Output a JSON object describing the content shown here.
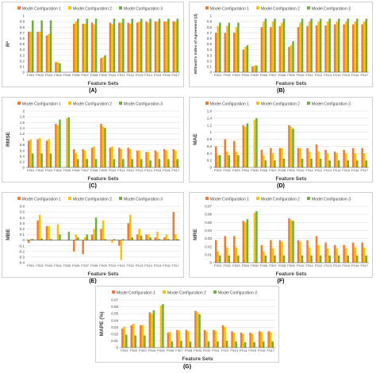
{
  "colors": {
    "series1": "#ED7D31",
    "series2": "#FFC000",
    "series3": "#70AD47",
    "grid": "#d9d9d9",
    "axis": "#595959"
  },
  "chart_data": [
    {
      "type": "bar",
      "panel_label": "(A)",
      "title": "",
      "xlabel": "Feature Sets",
      "ylabel": "R²",
      "ylim": [
        0,
        1
      ],
      "yticks": [
        "0",
        "0.1",
        "0.2",
        "0.3",
        "0.4",
        "0.5",
        "0.6",
        "0.7",
        "0.8",
        "0.9",
        "1"
      ],
      "grid": true,
      "legend": "top",
      "categories": [
        "FS01",
        "FS02",
        "FS03",
        "FS04",
        "FS05",
        "FS06",
        "FS07",
        "FS08",
        "FS09",
        "FS10",
        "FS11",
        "FS12",
        "FS13",
        "FS14",
        "FS15",
        "FS16",
        "FS17"
      ],
      "series": [
        {
          "name": "Model Configuration 1",
          "values": [
            0.72,
            0.72,
            0.65,
            0.18,
            0.0,
            0.86,
            0.86,
            0.88,
            0.25,
            0.88,
            0.88,
            0.88,
            0.88,
            0.9,
            0.9,
            0.9,
            0.9
          ]
        },
        {
          "name": "Model Configuration 2",
          "values": [
            0.72,
            0.72,
            0.68,
            0.18,
            0.0,
            0.9,
            0.86,
            0.85,
            0.27,
            0.85,
            0.88,
            0.86,
            0.9,
            0.88,
            0.9,
            0.9,
            0.9
          ]
        },
        {
          "name": "Model Configuration 3",
          "values": [
            0.92,
            0.92,
            0.92,
            0.16,
            0.0,
            0.95,
            0.95,
            0.95,
            0.3,
            0.95,
            0.95,
            0.95,
            0.95,
            0.95,
            0.95,
            0.95,
            0.95
          ]
        }
      ]
    },
    {
      "type": "bar",
      "panel_label": "(B)",
      "title": "",
      "xlabel": "Feature Sets",
      "ylabel": "Willmott's Index of Agreement (d)",
      "ylim": [
        0,
        1
      ],
      "yticks": [
        "0",
        "0.1",
        "0.2",
        "0.3",
        "0.4",
        "0.5",
        "0.6",
        "0.7",
        "0.8",
        "0.9",
        "1"
      ],
      "grid": true,
      "legend": "top",
      "categories": [
        "FS01",
        "FS02",
        "FS03",
        "FS04",
        "FS05",
        "FS06",
        "FS07",
        "FS08",
        "FS09",
        "FS10",
        "FS11",
        "FS12",
        "FS13",
        "FS14",
        "FS15",
        "FS16",
        "FS17"
      ],
      "series": [
        {
          "name": "Model Configuration 1",
          "values": [
            0.7,
            0.7,
            0.7,
            0.4,
            0.1,
            0.8,
            0.8,
            0.82,
            0.45,
            0.8,
            0.82,
            0.83,
            0.83,
            0.85,
            0.85,
            0.85,
            0.85
          ]
        },
        {
          "name": "Model Configuration 2",
          "values": [
            0.82,
            0.82,
            0.8,
            0.45,
            0.12,
            0.9,
            0.9,
            0.88,
            0.48,
            0.88,
            0.9,
            0.9,
            0.9,
            0.9,
            0.9,
            0.9,
            0.9
          ]
        },
        {
          "name": "Model Configuration 3",
          "values": [
            0.88,
            0.88,
            0.88,
            0.48,
            0.12,
            0.95,
            0.95,
            0.95,
            0.55,
            0.95,
            0.95,
            0.95,
            0.95,
            0.95,
            0.95,
            0.95,
            0.95
          ]
        }
      ]
    },
    {
      "type": "bar",
      "panel_label": "(C)",
      "title": "",
      "xlabel": "Feature Sets",
      "ylabel": "RMSE",
      "ylim": [
        0,
        2
      ],
      "yticks": [
        "0",
        "0.2",
        "0.4",
        "0.6",
        "0.8",
        "1",
        "1.2",
        "1.4",
        "1.6",
        "1.8",
        "2"
      ],
      "grid": true,
      "legend": "top",
      "categories": [
        "FS01",
        "FS02",
        "FS03",
        "FS04",
        "FS05",
        "FS06",
        "FS07",
        "FS08",
        "FS09",
        "FS10",
        "FS11",
        "FS12",
        "FS13",
        "FS14",
        "FS15",
        "FS16",
        "FS17"
      ],
      "series": [
        {
          "name": "Model Configuration 1",
          "values": [
            0.95,
            1.0,
            0.95,
            1.55,
            0.0,
            0.65,
            0.65,
            0.7,
            1.55,
            0.7,
            0.7,
            0.7,
            0.6,
            0.55,
            0.6,
            0.65,
            0.65
          ]
        },
        {
          "name": "Model Configuration 2",
          "values": [
            1.0,
            1.05,
            1.0,
            1.5,
            1.75,
            0.5,
            0.6,
            0.75,
            1.45,
            0.75,
            0.65,
            0.65,
            0.6,
            0.55,
            0.55,
            0.6,
            0.6
          ]
        },
        {
          "name": "Model Configuration 3",
          "values": [
            0.5,
            0.5,
            0.5,
            1.7,
            1.78,
            0.3,
            0.3,
            0.3,
            1.4,
            0.3,
            0.3,
            0.3,
            0.3,
            0.25,
            0.3,
            0.3,
            0.3
          ]
        }
      ]
    },
    {
      "type": "bar",
      "panel_label": "(D)",
      "title": "",
      "xlabel": "Feature Sets",
      "ylabel": "MAE",
      "ylim": [
        0,
        1.6
      ],
      "yticks": [
        "0",
        "0.2",
        "0.4",
        "0.6",
        "0.8",
        "1",
        "1.2",
        "1.4",
        "1.6"
      ],
      "grid": true,
      "legend": "top",
      "categories": [
        "FS01",
        "FS02",
        "FS03",
        "FS04",
        "FS05",
        "FS06",
        "FS07",
        "FS08",
        "FS09",
        "FS10",
        "FS11",
        "FS12",
        "FS13",
        "FS14",
        "FS15",
        "FS16",
        "FS17"
      ],
      "series": [
        {
          "name": "Model Configuration 1",
          "values": [
            0.6,
            0.8,
            0.75,
            1.2,
            0.0,
            0.5,
            0.55,
            0.55,
            1.2,
            0.55,
            0.55,
            0.65,
            0.5,
            0.45,
            0.5,
            0.55,
            0.55
          ]
        },
        {
          "name": "Model Configuration 2",
          "values": [
            0.35,
            0.45,
            0.45,
            1.15,
            1.35,
            0.35,
            0.4,
            0.55,
            1.15,
            0.55,
            0.45,
            0.45,
            0.4,
            0.4,
            0.4,
            0.4,
            0.4
          ]
        },
        {
          "name": "Model Configuration 3",
          "values": [
            0.35,
            0.35,
            0.35,
            1.25,
            1.4,
            0.2,
            0.2,
            0.25,
            1.1,
            0.25,
            0.25,
            0.25,
            0.2,
            0.2,
            0.2,
            0.2,
            0.2
          ]
        }
      ]
    },
    {
      "type": "bar",
      "panel_label": "(E)",
      "title": "",
      "xlabel": "Feature Sets",
      "ylabel": "MBE",
      "ylim": [
        -0.4,
        0.6
      ],
      "yticks": [
        "-0.4",
        "-0.3",
        "-0.2",
        "-0.1",
        "0",
        "0.1",
        "0.2",
        "0.3",
        "0.4",
        "0.5",
        "0.6"
      ],
      "grid": true,
      "legend": "top",
      "categories": [
        "FS01",
        "FS02",
        "FS03",
        "FS04",
        "FS05",
        "FS06",
        "FS07",
        "FS08",
        "FS09",
        "FS10",
        "FS11",
        "FS12",
        "FS13",
        "FS14",
        "FS15",
        "FS16",
        "FS17"
      ],
      "series": [
        {
          "name": "Model Configuration 1",
          "values": [
            -0.05,
            0.35,
            0.25,
            0.0,
            0.0,
            -0.2,
            -0.25,
            0.1,
            0.2,
            0.0,
            -0.1,
            0.3,
            0.1,
            0.1,
            0.05,
            0.05,
            0.5
          ]
        },
        {
          "name": "Model Configuration 2",
          "values": [
            0.02,
            0.45,
            0.25,
            0.28,
            0.0,
            0.1,
            0.05,
            0.2,
            0.35,
            -0.05,
            -0.35,
            0.45,
            0.2,
            0.1,
            0.15,
            0.1,
            0.1
          ]
        },
        {
          "name": "Model Configuration 3",
          "values": [
            0.02,
            0.03,
            0.02,
            0.1,
            0.15,
            0.05,
            0.1,
            0.4,
            0.02,
            0.02,
            0.02,
            0.05,
            0.08,
            0.05,
            0.02,
            0.02,
            0.02
          ]
        }
      ]
    },
    {
      "type": "bar",
      "panel_label": "(F)",
      "title": "",
      "xlabel": "Feature Sets",
      "ylabel": "MRE",
      "ylim": [
        0,
        0.07
      ],
      "yticks": [
        "0",
        "0.01",
        "0.02",
        "0.03",
        "0.04",
        "0.05",
        "0.06",
        "0.07"
      ],
      "grid": true,
      "legend": "top",
      "categories": [
        "FS01",
        "FS02",
        "FS03",
        "FS04",
        "FS05",
        "FS06",
        "FS07",
        "FS08",
        "FS09",
        "FS10",
        "FS11",
        "FS12",
        "FS13",
        "FS14",
        "FS15",
        "FS16",
        "FS17"
      ],
      "series": [
        {
          "name": "Model Configuration 1",
          "values": [
            0.028,
            0.033,
            0.033,
            0.052,
            0.0,
            0.022,
            0.028,
            0.028,
            0.055,
            0.028,
            0.028,
            0.033,
            0.025,
            0.022,
            0.022,
            0.025,
            0.025
          ]
        },
        {
          "name": "Model Configuration 2",
          "values": [
            0.014,
            0.019,
            0.019,
            0.05,
            0.062,
            0.014,
            0.018,
            0.026,
            0.053,
            0.026,
            0.019,
            0.022,
            0.018,
            0.018,
            0.018,
            0.019,
            0.019
          ]
        },
        {
          "name": "Model Configuration 3",
          "values": [
            0.009,
            0.009,
            0.009,
            0.054,
            0.064,
            0.009,
            0.009,
            0.009,
            0.052,
            0.009,
            0.009,
            0.009,
            0.009,
            0.009,
            0.009,
            0.009,
            0.009
          ]
        }
      ]
    },
    {
      "type": "bar",
      "panel_label": "(G)",
      "title": "",
      "xlabel": "Feature Sets",
      "ylabel": "MAPE (%)",
      "ylim": [
        0,
        0.07
      ],
      "yticks": [
        "0",
        "0.01",
        "0.02",
        "0.03",
        "0.04",
        "0.05",
        "0.06",
        "0.07"
      ],
      "grid": true,
      "legend": "top",
      "categories": [
        "FS01",
        "FS02",
        "FS03",
        "FS04",
        "FS05",
        "FS06",
        "FS07",
        "FS08",
        "FS09",
        "FS10",
        "FS11",
        "FS12",
        "FS13",
        "FS14",
        "FS15",
        "FS16",
        "FS17"
      ],
      "series": [
        {
          "name": "Model Configuration 1",
          "values": [
            0.028,
            0.033,
            0.033,
            0.052,
            0.0,
            0.022,
            0.026,
            0.026,
            0.054,
            0.026,
            0.026,
            0.033,
            0.024,
            0.022,
            0.022,
            0.024,
            0.024
          ]
        },
        {
          "name": "Model Configuration 2",
          "values": [
            0.031,
            0.035,
            0.033,
            0.05,
            0.062,
            0.023,
            0.025,
            0.024,
            0.052,
            0.024,
            0.024,
            0.03,
            0.022,
            0.02,
            0.02,
            0.023,
            0.023
          ]
        },
        {
          "name": "Model Configuration 3",
          "values": [
            0.019,
            0.018,
            0.018,
            0.055,
            0.064,
            0.009,
            0.01,
            0.009,
            0.049,
            0.009,
            0.009,
            0.01,
            0.009,
            0.008,
            0.008,
            0.009,
            0.009
          ]
        }
      ]
    }
  ]
}
